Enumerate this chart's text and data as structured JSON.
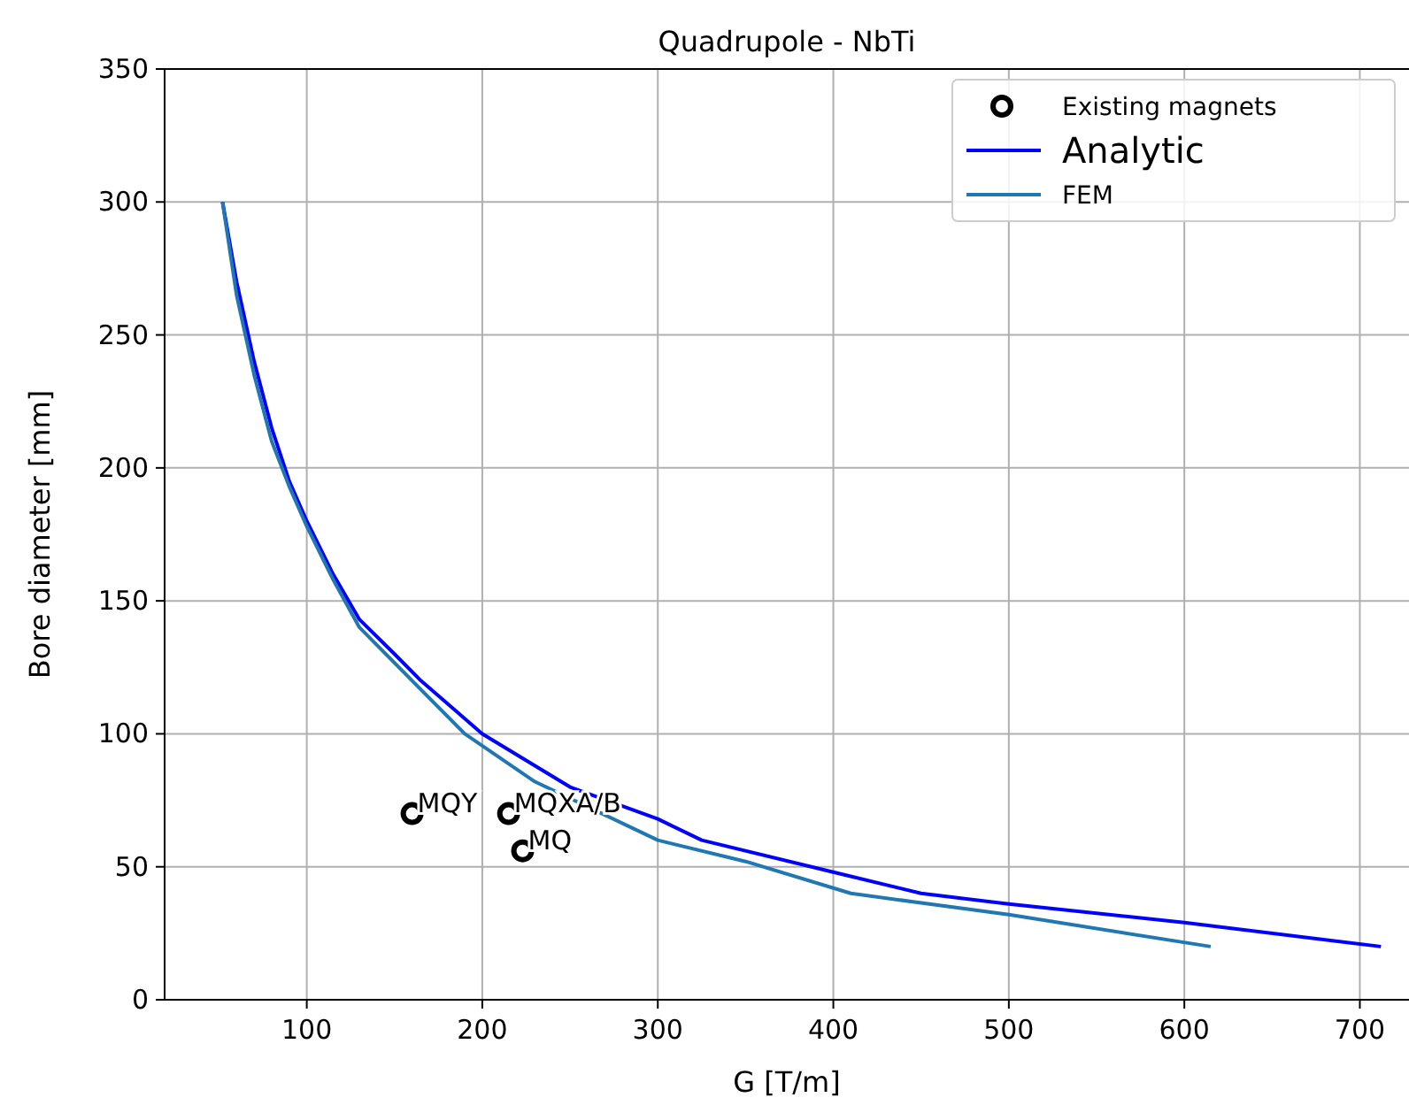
{
  "chart_data": {
    "type": "line",
    "title": "Quadrupole - NbTi",
    "xlabel": "G [T/m]",
    "ylabel": "Bore diameter [mm]",
    "xlim": [
      19,
      728
    ],
    "xticks": [
      100,
      200,
      300,
      400,
      500,
      600,
      700
    ],
    "ylim": [
      0,
      350
    ],
    "yticks": [
      0,
      50,
      100,
      150,
      200,
      250,
      300,
      350
    ],
    "grid": true,
    "legend": "top right",
    "series": [
      {
        "name": "Existing magnets",
        "type": "scatter",
        "marker": "circle",
        "color": "#000000",
        "x": [
          160,
          215,
          223
        ],
        "values": [
          70,
          70,
          56
        ]
      },
      {
        "name": "Analytic",
        "marker": "none",
        "color": "#0000ff",
        "x": [
          52,
          60,
          70,
          80,
          90,
          100,
          115,
          130,
          150,
          165,
          200,
          250,
          300,
          325,
          400,
          450,
          500,
          600,
          712
        ],
        "values": [
          300,
          270,
          240,
          215,
          195,
          180,
          160,
          143,
          130,
          120,
          100,
          80,
          68,
          60,
          48,
          40,
          36,
          29,
          20
        ]
      },
      {
        "name": "FEM",
        "marker": "none",
        "color": "#1f77b4",
        "x": [
          52,
          60,
          70,
          80,
          90,
          100,
          115,
          130,
          160,
          190,
          230,
          300,
          350,
          410,
          500,
          615
        ],
        "values": [
          300,
          265,
          235,
          210,
          193,
          178,
          158,
          140,
          120,
          100,
          82,
          60,
          52,
          40,
          32,
          20
        ]
      }
    ],
    "annotations": [
      {
        "text": "MQY",
        "x": 160,
        "y": 70
      },
      {
        "text": "MQXA/B",
        "x": 215,
        "y": 70
      },
      {
        "text": "MQ",
        "x": 223,
        "y": 56
      }
    ]
  }
}
